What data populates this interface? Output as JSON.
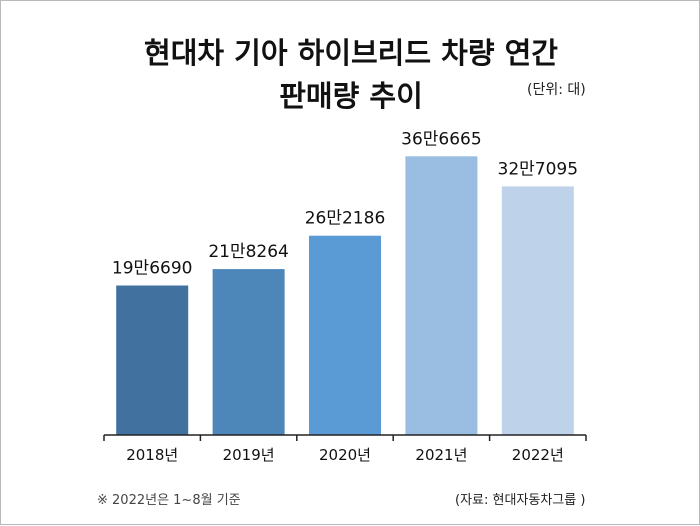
{
  "title_line1": "현대차 기아 하이브리드 차량 연간",
  "title_line2": "판매량 추이",
  "unit_label": "(단위: 대)",
  "footnote": "※ 2022년은 1~8월 기준",
  "source": "(자료: 현대자동차그룹 )",
  "chart_data": {
    "type": "bar",
    "title": "현대차 기아 하이브리드 차량 연간 판매량 추이",
    "categories": [
      "2018년",
      "2019년",
      "2020년",
      "2021년",
      "2022년"
    ],
    "values": [
      196690,
      218264,
      262186,
      366665,
      327095
    ],
    "data_labels": [
      "19만6690",
      "21만8264",
      "26만2186",
      "36만6665",
      "32만7095"
    ],
    "bar_colors": [
      "#41729f",
      "#4d87ba",
      "#5b9bd5",
      "#9abde2",
      "#bed2ea"
    ],
    "ylim": [
      0,
      400000
    ],
    "grid": false,
    "legend": "none"
  }
}
